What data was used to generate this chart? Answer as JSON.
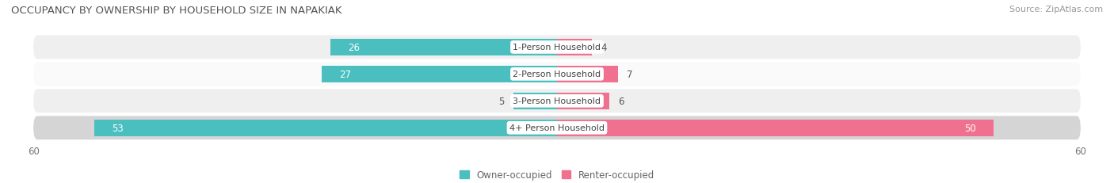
{
  "title": "OCCUPANCY BY OWNERSHIP BY HOUSEHOLD SIZE IN NAPAKIAK",
  "source": "Source: ZipAtlas.com",
  "categories": [
    "1-Person Household",
    "2-Person Household",
    "3-Person Household",
    "4+ Person Household"
  ],
  "owner_values": [
    26,
    27,
    5,
    53
  ],
  "renter_values": [
    4,
    7,
    6,
    50
  ],
  "owner_color": "#4BBFBF",
  "renter_color": "#F07090",
  "row_bg_light": "#F0F0F0",
  "row_bg_dark": "#D8D8D8",
  "axis_max": 60,
  "legend_owner": "Owner-occupied",
  "legend_renter": "Renter-occupied",
  "label_fontsize": 8.5,
  "title_fontsize": 9.5,
  "source_fontsize": 8,
  "axis_label_fontsize": 8.5,
  "row_bgs": [
    "#EFEFEF",
    "#FAFAFA",
    "#EFEFEF",
    "#D5D5D5"
  ]
}
